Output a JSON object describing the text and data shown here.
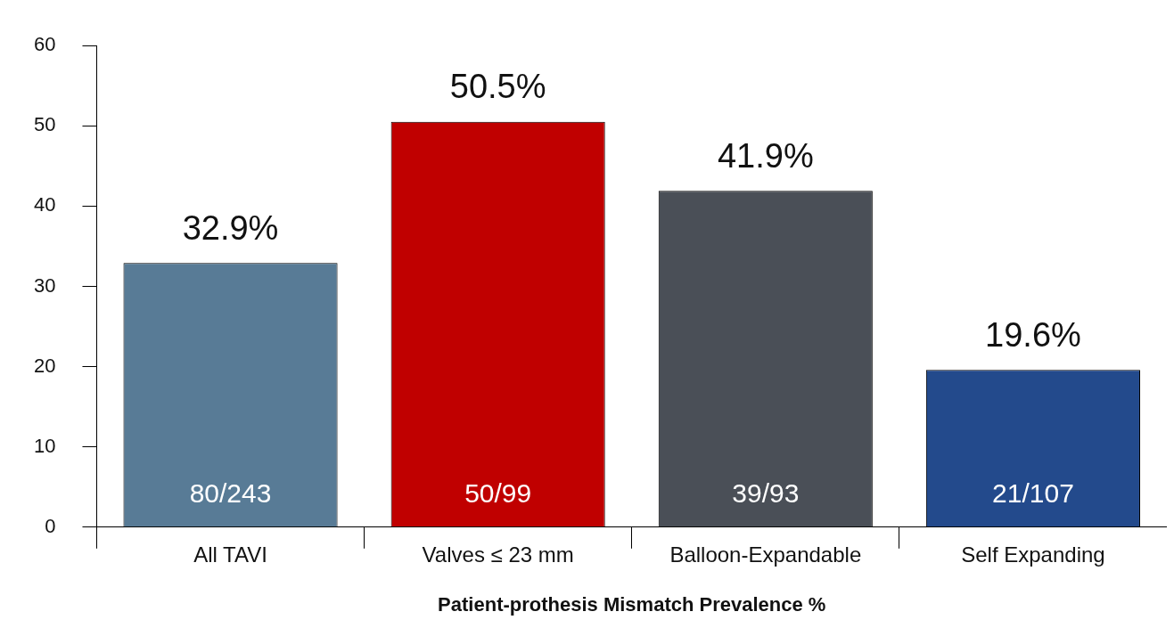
{
  "chart_data": {
    "type": "bar",
    "xlabel": "Patient-prothesis Mismatch Prevalence %",
    "categories": [
      "All TAVI",
      "Valves ≤ 23 mm",
      "Balloon-Expandable",
      "Self Expanding"
    ],
    "values": [
      32.9,
      50.5,
      41.9,
      19.6
    ],
    "colors": [
      "#587b96",
      "#c00000",
      "#4a4f57",
      "#234a8c"
    ],
    "value_labels": [
      "32.9%",
      "50.5%",
      "41.9%",
      "19.6%"
    ],
    "annotations": [
      "80/243",
      "50/99",
      "39/93",
      "21/107"
    ],
    "ylim": [
      0,
      60
    ],
    "yticks": [
      0,
      10,
      20,
      30,
      40,
      50,
      60
    ],
    "grid": false,
    "legend": false
  }
}
